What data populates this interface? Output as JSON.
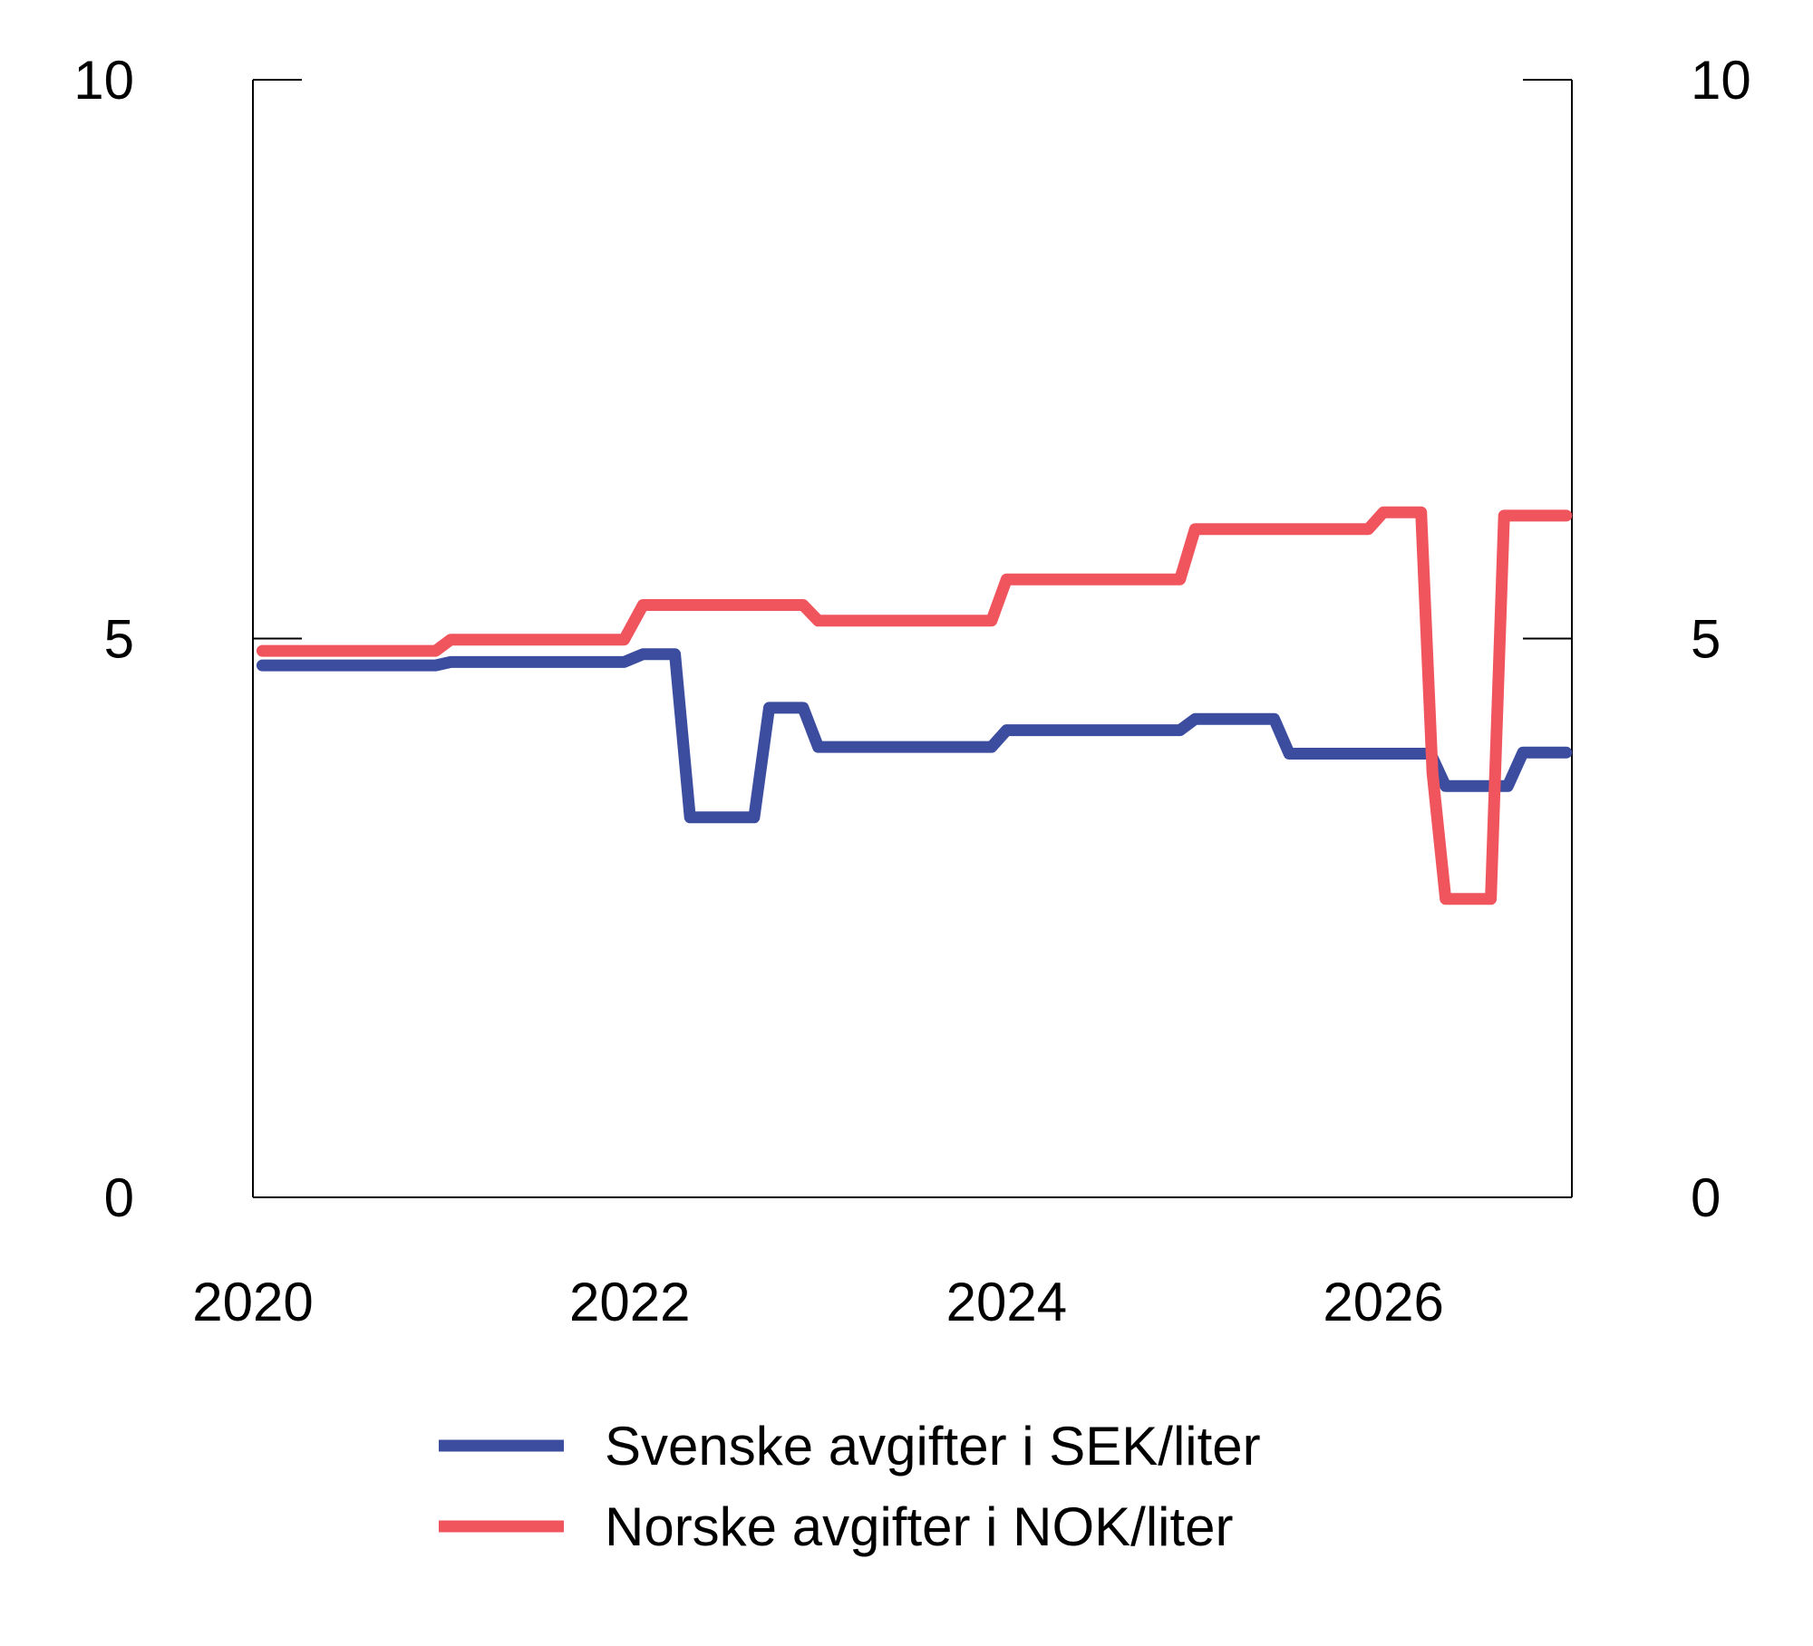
{
  "chart_data": {
    "type": "line",
    "title": "",
    "xlabel": "",
    "ylabel": "",
    "xlim": [
      2020,
      2027
    ],
    "ylim": [
      0,
      10
    ],
    "grid": false,
    "legend_position": "bottom",
    "x_ticks": [
      2020,
      2022,
      2024,
      2026
    ],
    "x_tick_labels": [
      "2020",
      "2022",
      "2024",
      "2026"
    ],
    "y_ticks": [
      0,
      5,
      10
    ],
    "y_left_tick_labels": [
      "0",
      "5",
      "10"
    ],
    "y_right_tick_labels": [
      "0",
      "5",
      "10"
    ],
    "series": [
      {
        "name": "Svenske avgifter i SEK/liter",
        "color": "#3C4DA0",
        "x": [
          2020.05,
          2020.97,
          2021.05,
          2021.97,
          2022.07,
          2022.24,
          2022.32,
          2022.66,
          2022.74,
          2022.92,
          2023.0,
          2023.92,
          2024.0,
          2024.92,
          2025.0,
          2025.42,
          2025.5,
          2026.25,
          2026.33,
          2026.66,
          2026.74,
          2026.97
        ],
        "y": [
          4.76,
          4.76,
          4.79,
          4.79,
          4.86,
          4.86,
          3.4,
          3.4,
          4.38,
          4.38,
          4.03,
          4.03,
          4.18,
          4.18,
          4.28,
          4.28,
          3.97,
          3.97,
          3.68,
          3.68,
          3.98,
          3.98
        ]
      },
      {
        "name": "Norske avgifter i NOK/liter",
        "color": "#F0555E",
        "x": [
          2020.05,
          2020.97,
          2021.05,
          2021.97,
          2022.07,
          2022.92,
          2023.0,
          2023.92,
          2024.0,
          2024.92,
          2025.0,
          2025.92,
          2026.0,
          2026.2,
          2026.26,
          2026.33,
          2026.57,
          2026.64,
          2026.97
        ],
        "y": [
          4.89,
          4.89,
          4.99,
          4.99,
          5.3,
          5.3,
          5.16,
          5.16,
          5.53,
          5.53,
          5.98,
          5.98,
          6.13,
          6.13,
          3.8,
          2.67,
          2.67,
          6.1,
          6.1
        ]
      }
    ]
  }
}
